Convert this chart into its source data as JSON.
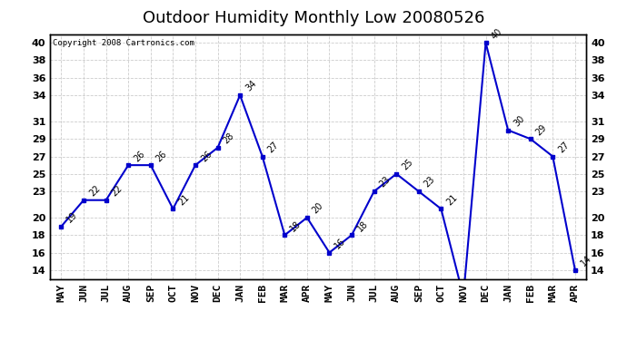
{
  "title": "Outdoor Humidity Monthly Low 20080526",
  "copyright": "Copyright 2008 Cartronics.com",
  "months": [
    "MAY",
    "JUN",
    "JUL",
    "AUG",
    "SEP",
    "OCT",
    "NOV",
    "DEC",
    "JAN",
    "FEB",
    "MAR",
    "APR",
    "MAY",
    "JUN",
    "JUL",
    "AUG",
    "SEP",
    "OCT",
    "NOV",
    "DEC",
    "JAN",
    "FEB",
    "MAR",
    "APR"
  ],
  "values": [
    19,
    22,
    22,
    26,
    26,
    21,
    26,
    28,
    34,
    27,
    18,
    20,
    16,
    18,
    23,
    25,
    23,
    21,
    11,
    40,
    30,
    29,
    27,
    14
  ],
  "ylim": [
    13,
    41
  ],
  "yticks": [
    14,
    16,
    18,
    20,
    23,
    25,
    27,
    29,
    31,
    34,
    36,
    38,
    40
  ],
  "line_color": "#0000cc",
  "marker": "s",
  "marker_size": 3,
  "bg_color": "#ffffff",
  "grid_color": "#cccccc",
  "title_fontsize": 13,
  "label_fontsize": 8,
  "annotation_fontsize": 7,
  "copyright_fontsize": 6.5
}
